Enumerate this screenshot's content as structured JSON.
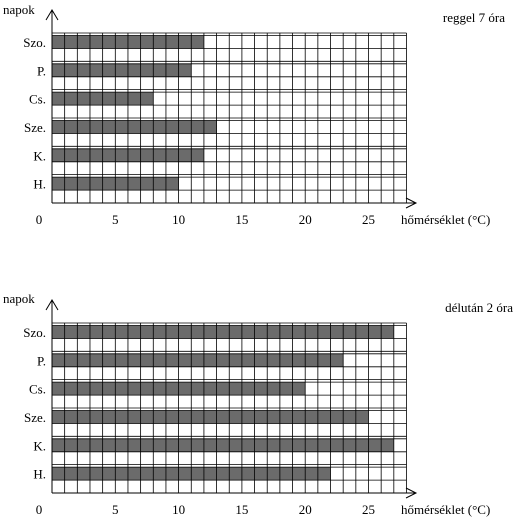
{
  "chart_data": [
    {
      "type": "bar",
      "orientation": "horizontal",
      "title": "reggel 7 óra",
      "ylabel": "napok",
      "xlabel": "hőmérséklet (°C)",
      "origin_label": "0",
      "categories": [
        "Szo.",
        "P.",
        "Cs.",
        "Sze.",
        "K.",
        "H."
      ],
      "values": [
        12,
        11,
        8,
        13,
        12,
        10
      ],
      "xlim": [
        0,
        28
      ],
      "xticks": [
        5,
        10,
        15,
        20,
        25
      ],
      "grid": true,
      "bar_color": "#6b6b6b"
    },
    {
      "type": "bar",
      "orientation": "horizontal",
      "title": "délután 2 óra",
      "ylabel": "napok",
      "xlabel": "hőmérséklet (°C)",
      "origin_label": "0",
      "categories": [
        "Szo.",
        "P.",
        "Cs.",
        "Sze.",
        "K.",
        "H."
      ],
      "values": [
        27,
        23,
        20,
        25,
        27,
        22
      ],
      "xlim": [
        0,
        28
      ],
      "xticks": [
        5,
        10,
        15,
        20,
        25
      ],
      "grid": true,
      "bar_color": "#6b6b6b"
    }
  ]
}
